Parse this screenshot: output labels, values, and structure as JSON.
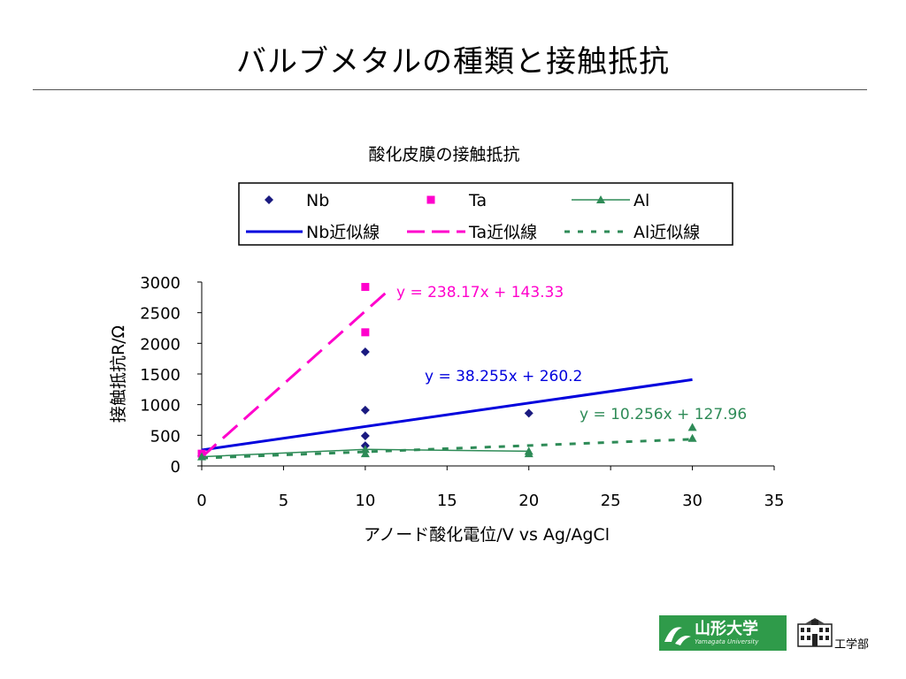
{
  "slide": {
    "title": "バルブメタルの種類と接触抵抗"
  },
  "footer": {
    "university_logo_text": "山形大学",
    "university_logo_subtext": "Yamagata University",
    "department": "工学部",
    "logo_color": "#2f9b4a"
  },
  "chart_data": {
    "type": "scatter",
    "title": "酸化皮膜の接触抵抗",
    "xlabel": "アノード酸化電位/V vs Ag/AgCl",
    "ylabel": "接触抵抗R/Ω",
    "xlim": [
      0,
      35
    ],
    "ylim": [
      0,
      3000
    ],
    "xticks": [
      0,
      5,
      10,
      15,
      20,
      25,
      30,
      35
    ],
    "yticks": [
      0,
      500,
      1000,
      1500,
      2000,
      2500,
      3000
    ],
    "grid": false,
    "legend_position": "top",
    "series": [
      {
        "name": "Nb",
        "marker": "diamond",
        "color": "#1a1a80",
        "line": false,
        "points": [
          [
            0,
            160
          ],
          [
            10,
            1860
          ],
          [
            10,
            910
          ],
          [
            10,
            490
          ],
          [
            10,
            330
          ],
          [
            20,
            860
          ]
        ]
      },
      {
        "name": "Ta",
        "marker": "square",
        "color": "#ff00cc",
        "line": false,
        "points": [
          [
            0,
            200
          ],
          [
            10,
            2920
          ],
          [
            10,
            2180
          ]
        ]
      },
      {
        "name": "Al",
        "marker": "triangle",
        "color": "#2e8b57",
        "line": true,
        "points": [
          [
            0,
            150
          ],
          [
            10,
            270
          ],
          [
            20,
            240
          ]
        ]
      },
      {
        "name": "Al",
        "marker": "triangle",
        "color": "#2e8b57",
        "line": false,
        "points": [
          [
            10,
            200
          ],
          [
            20,
            200
          ],
          [
            30,
            630
          ],
          [
            30,
            450
          ]
        ]
      }
    ],
    "trendlines": [
      {
        "name": "Nb近似線",
        "color": "#0000dd",
        "style": "solid",
        "slope": 38.255,
        "intercept": 260.2,
        "x_range": [
          0,
          30
        ],
        "equation": "y = 38.255x + 260.2"
      },
      {
        "name": "Ta近似線",
        "color": "#ff00cc",
        "style": "dashed",
        "slope": 238.17,
        "intercept": 143.33,
        "x_range": [
          0,
          11.5
        ],
        "equation": "y = 238.17x + 143.33"
      },
      {
        "name": "Al近似線",
        "color": "#2e8b57",
        "style": "dotted",
        "slope": 10.256,
        "intercept": 127.96,
        "x_range": [
          0,
          30
        ],
        "equation": "y = 10.256x + 127.96"
      }
    ],
    "legend": [
      {
        "label": "Nb",
        "kind": "diamond",
        "color": "#1a1a80"
      },
      {
        "label": "Ta",
        "kind": "square",
        "color": "#ff00cc"
      },
      {
        "label": "Al",
        "kind": "line-triangle",
        "color": "#2e8b57"
      },
      {
        "label": "Nb近似線",
        "kind": "solid",
        "color": "#0000dd"
      },
      {
        "label": "Ta近似線",
        "kind": "dashed",
        "color": "#ff00cc"
      },
      {
        "label": "Al近似線",
        "kind": "dotted",
        "color": "#2e8b57"
      }
    ]
  }
}
